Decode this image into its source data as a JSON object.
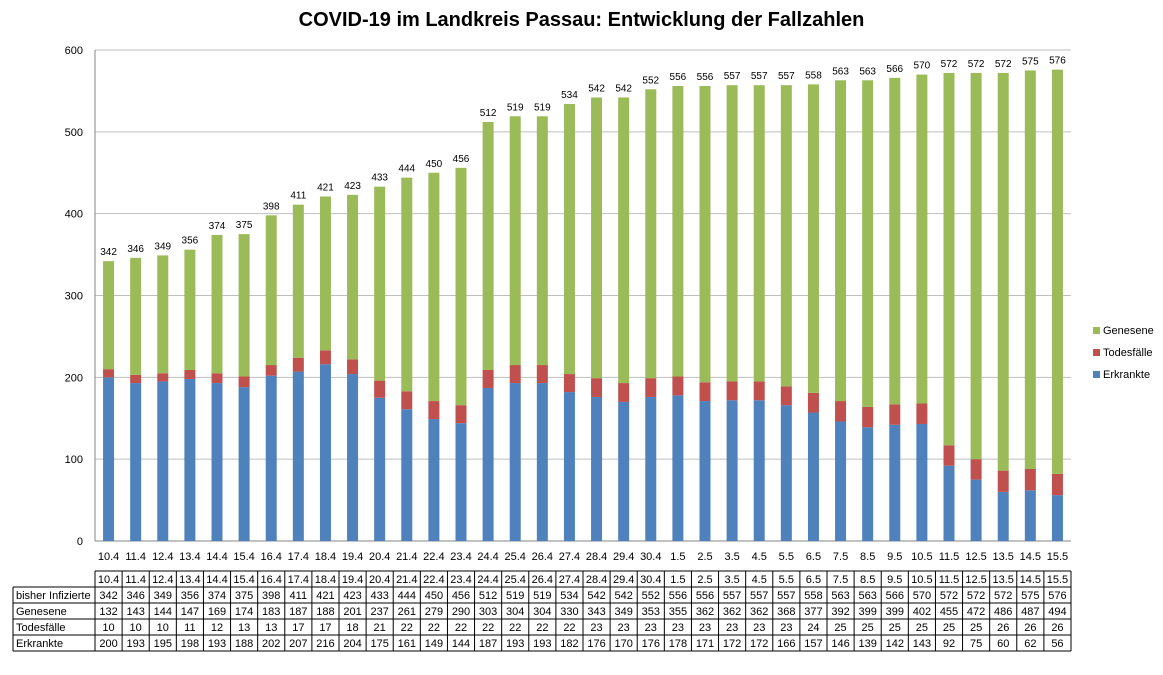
{
  "chart_data": {
    "type": "bar",
    "stacked": true,
    "title": "COVID-19 im Landkreis Passau: Entwicklung der Fallzahlen",
    "categories": [
      "10.4",
      "11.4",
      "12.4",
      "13.4",
      "14.4",
      "15.4",
      "16.4",
      "17.4",
      "18.4",
      "19.4",
      "20.4",
      "21.4",
      "22.4",
      "23.4",
      "24.4",
      "25.4",
      "26.4",
      "27.4",
      "28.4",
      "29.4",
      "30.4",
      "1.5",
      "2.5",
      "3.5",
      "4.5",
      "5.5",
      "6.5",
      "7.5",
      "8.5",
      "9.5",
      "10.5",
      "11.5",
      "12.5",
      "13.5",
      "14.5",
      "15.5"
    ],
    "totals_label": "bisher Infizierte",
    "totals": [
      342,
      346,
      349,
      356,
      374,
      375,
      398,
      411,
      421,
      423,
      433,
      444,
      450,
      456,
      512,
      519,
      519,
      534,
      542,
      542,
      552,
      556,
      556,
      557,
      557,
      557,
      558,
      563,
      563,
      566,
      570,
      572,
      572,
      572,
      575,
      576
    ],
    "series": [
      {
        "name": "Erkrankte",
        "color": "#4f81bd",
        "values": [
          200,
          193,
          195,
          198,
          193,
          188,
          202,
          207,
          216,
          204,
          175,
          161,
          149,
          144,
          187,
          193,
          193,
          182,
          176,
          170,
          176,
          178,
          171,
          172,
          172,
          166,
          157,
          146,
          139,
          142,
          143,
          92,
          75,
          60,
          62,
          56
        ]
      },
      {
        "name": "Todesfälle",
        "color": "#c0504d",
        "values": [
          10,
          10,
          10,
          11,
          12,
          13,
          13,
          17,
          17,
          18,
          21,
          22,
          22,
          22,
          22,
          22,
          22,
          22,
          23,
          23,
          23,
          23,
          23,
          23,
          23,
          23,
          24,
          25,
          25,
          25,
          25,
          25,
          25,
          26,
          26,
          26
        ]
      },
      {
        "name": "Genesene",
        "color": "#9bbb59",
        "values": [
          132,
          143,
          144,
          147,
          169,
          174,
          183,
          187,
          188,
          201,
          237,
          261,
          279,
          290,
          303,
          304,
          304,
          330,
          343,
          349,
          353,
          355,
          362,
          362,
          362,
          368,
          377,
          392,
          399,
          399,
          402,
          455,
          472,
          486,
          487,
          494
        ]
      }
    ],
    "table_rows": [
      "bisher Infizierte",
      "Genesene",
      "Todesfälle",
      "Erkrankte"
    ],
    "ylim": [
      0,
      600
    ],
    "yticks": [
      0,
      100,
      200,
      300,
      400,
      500,
      600
    ],
    "grid": true,
    "legend_position": "right"
  }
}
